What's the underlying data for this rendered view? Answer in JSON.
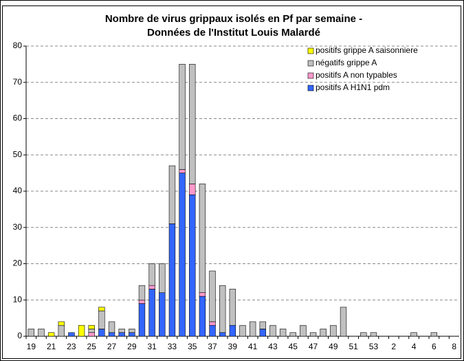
{
  "chart_data": {
    "type": "stacked_bar",
    "title": [
      "Nombre de virus grippaux isolés en Pf par semaine -",
      "Données de l'Institut Louis Malardé"
    ],
    "categories": [
      "19",
      null,
      "21",
      null,
      "23",
      null,
      "25",
      null,
      "27",
      null,
      "29",
      null,
      "31",
      null,
      "33",
      null,
      "35",
      null,
      "37",
      null,
      "39",
      null,
      "41",
      null,
      "43",
      null,
      "45",
      null,
      "47",
      null,
      "49",
      null,
      "51",
      null,
      "53",
      null,
      "2",
      null,
      "4",
      null,
      "6",
      null,
      "8"
    ],
    "series": [
      {
        "name": "positifs A H1N1 pdm",
        "color": "#3366ff",
        "values": [
          0,
          0,
          0,
          0,
          1,
          0,
          0,
          2,
          1,
          1,
          1,
          9,
          13,
          12,
          31,
          45,
          39,
          11,
          3,
          1,
          3,
          0,
          0,
          2,
          0,
          0,
          0,
          0,
          0,
          0,
          0,
          0,
          0,
          0,
          0,
          0,
          0,
          0,
          0,
          0,
          0,
          0,
          0
        ]
      },
      {
        "name": "positifs A non typables",
        "color": "#ff99cc",
        "values": [
          0,
          0,
          0,
          0,
          0,
          0,
          1,
          0,
          0,
          0,
          0,
          1,
          1,
          0,
          0,
          1,
          3,
          1,
          1,
          0,
          0,
          0,
          0,
          0,
          0,
          0,
          0,
          0,
          0,
          0,
          0,
          0,
          0,
          0,
          0,
          0,
          0,
          0,
          0,
          0,
          0,
          0,
          0
        ]
      },
      {
        "name": "négatifs grippe A",
        "color": "#c0c0c0",
        "values": [
          2,
          2,
          0,
          3,
          0,
          0,
          1,
          5,
          3,
          1,
          1,
          4,
          6,
          8,
          16,
          29,
          33,
          30,
          14,
          13,
          10,
          3,
          4,
          2,
          3,
          2,
          1,
          3,
          1,
          2,
          3,
          8,
          0,
          1,
          1,
          0,
          0,
          0,
          1,
          0,
          1,
          0,
          0
        ]
      },
      {
        "name": "positifs grippe A saisonniere",
        "color": "#ffff00",
        "values": [
          0,
          0,
          1,
          1,
          0,
          3,
          1,
          1,
          0,
          0,
          0,
          0,
          0,
          0,
          0,
          0,
          0,
          0,
          0,
          0,
          0,
          0,
          0,
          0,
          0,
          0,
          0,
          0,
          0,
          0,
          0,
          0,
          0,
          0,
          0,
          0,
          0,
          0,
          0,
          0,
          0,
          0,
          0
        ]
      }
    ],
    "ylim": [
      0,
      80
    ],
    "yticks": [
      0,
      10,
      20,
      30,
      40,
      50,
      60,
      70,
      80
    ],
    "grid": true,
    "legend": "top-right"
  }
}
